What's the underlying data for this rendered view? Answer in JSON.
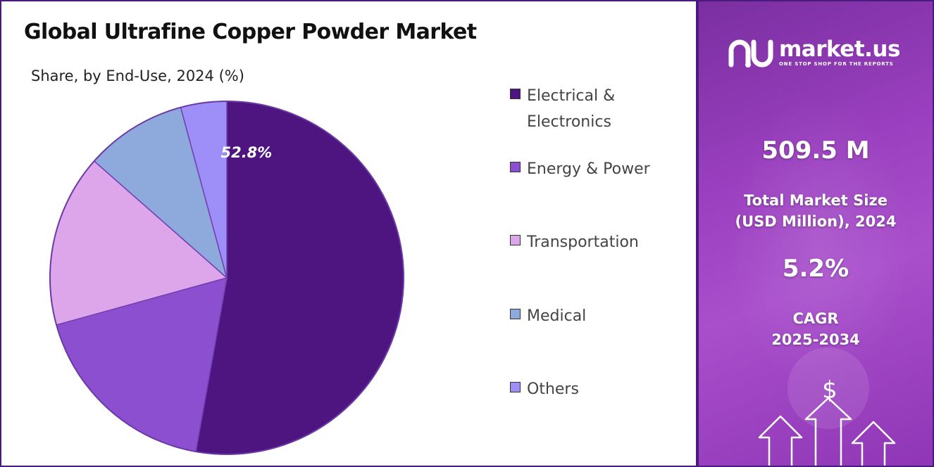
{
  "chart_data": {
    "type": "pie",
    "title": "Global Ultrafine Copper Powder Market",
    "subtitle": "Share, by End-Use, 2024 (%)",
    "categories": [
      "Electrical & Electronics",
      "Energy & Power",
      "Transportation",
      "Medical",
      "Others"
    ],
    "values": [
      52.8,
      17.9,
      15.8,
      9.3,
      4.2
    ],
    "colors": [
      "#4e1580",
      "#8b4fd0",
      "#dea6ea",
      "#8ea9db",
      "#9e8ef8"
    ],
    "data_labels": [
      {
        "category": "Electrical & Electronics",
        "text": "52.8%"
      }
    ],
    "legend_position": "right"
  },
  "legend": {
    "items": [
      {
        "line1": "Electrical &",
        "line2": "Electronics",
        "color": "#4e1580"
      },
      {
        "line1": "Energy & Power",
        "line2": "",
        "color": "#8b4fd0"
      },
      {
        "line1": "Transportation",
        "line2": "",
        "color": "#dea6ea"
      },
      {
        "line1": "Medical",
        "line2": "",
        "color": "#8ea9db"
      },
      {
        "line1": "Others",
        "line2": "",
        "color": "#9e8ef8"
      }
    ]
  },
  "brand": {
    "name": "market.us",
    "tagline": "ONE STOP SHOP FOR THE REPORTS"
  },
  "stats": {
    "market_size_value": "509.5 M",
    "market_size_label_1": "Total Market Size",
    "market_size_label_2": "(USD Million), 2024",
    "cagr_value": "5.2%",
    "cagr_label_1": "CAGR",
    "cagr_label_2": "2025-2034"
  },
  "icons": {
    "brand": "market-us-logo-icon",
    "currency": "dollar-sign-icon",
    "growth": "up-arrows-icon"
  }
}
